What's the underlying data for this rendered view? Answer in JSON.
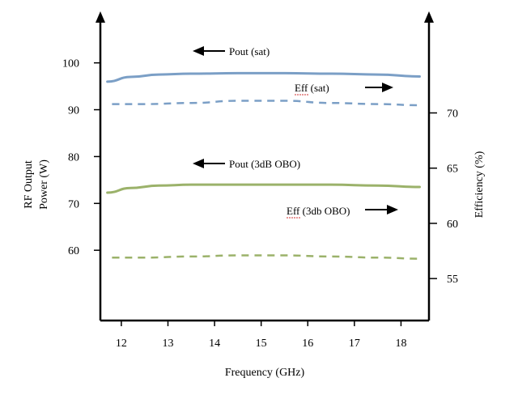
{
  "chart_data": {
    "type": "line",
    "title": "",
    "xlabel": "Frequency (GHz)",
    "ylabel_left": "RF Output Power (W)",
    "ylabel_left_lines": [
      "RF Output",
      "Power (W)"
    ],
    "ylabel_right": "Efficiency (%)",
    "x_ticks": [
      12,
      13,
      14,
      15,
      16,
      17,
      18
    ],
    "y_left_ticks": [
      60,
      70,
      80,
      90,
      100
    ],
    "y_right_ticks": [
      55,
      60,
      65,
      70
    ],
    "xlim": [
      11.55,
      18.6
    ],
    "ylim_left": [
      45,
      111
    ],
    "ylim_right": [
      51.2,
      79.2
    ],
    "grid": false,
    "series": [
      {
        "name": "Pout (sat)",
        "axis": "left",
        "style": "solid",
        "color": "#7b9fc6",
        "x": [
          11.7,
          12.2,
          12.8,
          13.5,
          14.5,
          15.5,
          16.5,
          17.5,
          18.4
        ],
        "y": [
          96.0,
          97.0,
          97.5,
          97.7,
          97.8,
          97.8,
          97.7,
          97.5,
          97.1
        ]
      },
      {
        "name": "Eff (sat)",
        "axis": "right",
        "style": "dashed",
        "color": "#7b9fc6",
        "x": [
          11.8,
          12.5,
          13.5,
          14.5,
          15.5,
          16.5,
          17.5,
          18.4
        ],
        "y": [
          70.8,
          70.8,
          70.9,
          71.1,
          71.1,
          70.9,
          70.8,
          70.7
        ]
      },
      {
        "name": "Pout (3dB OBO)",
        "axis": "left",
        "style": "solid",
        "color": "#9bb26a",
        "x": [
          11.7,
          12.2,
          12.8,
          13.5,
          14.5,
          15.5,
          16.5,
          17.5,
          18.4
        ],
        "y": [
          72.3,
          73.3,
          73.8,
          74.0,
          74.0,
          74.0,
          74.0,
          73.8,
          73.5
        ]
      },
      {
        "name": "Eff (3db OBO)",
        "axis": "right",
        "style": "dashed",
        "color": "#9bb26a",
        "x": [
          11.8,
          12.5,
          13.5,
          14.5,
          15.5,
          16.5,
          17.5,
          18.4
        ],
        "y": [
          56.9,
          56.9,
          57.0,
          57.1,
          57.1,
          57.0,
          56.9,
          56.8
        ]
      }
    ],
    "annotations": [
      {
        "text": "Pout (sat)",
        "arrow": "left"
      },
      {
        "text": "Eff (sat)",
        "arrow": "right"
      },
      {
        "text": "Pout (3dB OBO)",
        "arrow": "left"
      },
      {
        "text": "Eff (3db OBO)",
        "arrow": "right"
      }
    ]
  }
}
